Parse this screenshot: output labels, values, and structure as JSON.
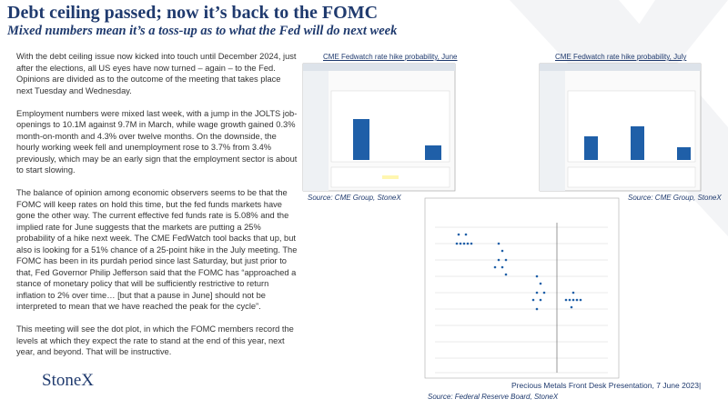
{
  "header": {
    "title": "Debt ceiling passed; now it’s back to the FOMC",
    "subtitle": "Mixed numbers mean it’s a toss-up as to what the Fed will do next week"
  },
  "body": {
    "paragraphs": [
      "With the debt ceiling issue now kicked into touch until December 2024, just after the elections, all US eyes have now turned – again – to the Fed.  Opinions are divided as to the outcome of the meeting that takes place next Tuesday and Wednesday.",
      "Employment numbers were mixed last week, with a jump in the JOLTS job-openings to 10.1M against 9.7M in March, while wage growth gained 0.3% month-on-month and 4.3% over twelve months.  On the downside, the hourly working week fell and unemployment rose to 3.7% from 3.4% previously, which may be an early sign that the employment sector is about to start slowing.",
      "The balance of opinion  among economic observers seems to be that the FOMC will keep rates on hold this time, but the fed funds markets have gone the other way.  The current effective fed funds rate is 5.08% and the implied rate for June suggests that the markets are putting a 25% probability of a hike next week.  The CME FedWatch tool backs that up, but also is looking for a 51% chance of a 25-point hike in the July meeting.  The FOMC has been in its purdah period since last Saturday, but just prior to that, Fed Governor Philip Jefferson said that the FOMC has “approached a stance of monetary policy that will be sufficiently restrictive to return inflation to 2% over time… [but that a pause in June] should not be interpreted to mean that we have reached the peak for the cycle”.",
      "This meeting will see the dot plot, in which the FOMC members record the levels at which they expect the rate to stand at the end of this year, next year, and beyond.  That will be instructive."
    ]
  },
  "figures": [
    {
      "caption": "CME Fedwatch  rate hike probability, June",
      "source": "Source: CME Group, StoneX"
    },
    {
      "caption": "CME Fedwatch  rate hike probability, July",
      "source": "Source: CME Group, StoneX"
    },
    {
      "source": "Source: Federal Reserve Board, StoneX"
    }
  ],
  "footer": {
    "logo": "StoneX",
    "text": "Precious Metals Front Desk Presentation, 7 June 2023|"
  }
}
